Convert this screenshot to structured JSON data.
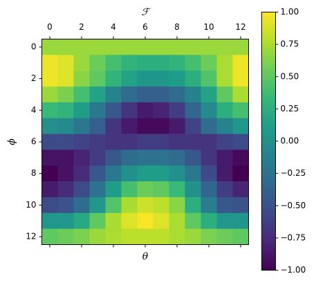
{
  "chart_data": {
    "type": "heatmap",
    "top_xlabel": "ℱ",
    "xlabel": "θ",
    "ylabel": "ϕ",
    "cmap": "viridis",
    "clim": [
      -1,
      1
    ],
    "xlim": [
      -0.5,
      12.5
    ],
    "ylim": [
      12.5,
      -0.5
    ],
    "xticks": [
      0,
      2,
      4,
      6,
      8,
      10,
      12
    ],
    "yticks": [
      0,
      2,
      4,
      6,
      8,
      10,
      12
    ],
    "cticks": [
      {
        "value": -1,
        "label": "−1.00"
      },
      {
        "value": -0.75,
        "label": "−0.75"
      },
      {
        "value": -0.5,
        "label": "−0.50"
      },
      {
        "value": -0.25,
        "label": "−0.25"
      },
      {
        "value": 0,
        "label": "0.00"
      },
      {
        "value": 0.25,
        "label": "0.25"
      },
      {
        "value": 0.5,
        "label": "0.50"
      },
      {
        "value": 0.75,
        "label": "0.75"
      },
      {
        "value": 1,
        "label": "1.00"
      }
    ],
    "values": [
      [
        0.7,
        0.7,
        0.7,
        0.7,
        0.7,
        0.7,
        0.7,
        0.7,
        0.7,
        0.7,
        0.7,
        0.7,
        0.7
      ],
      [
        0.95,
        0.9,
        0.7,
        0.55,
        0.4,
        0.3,
        0.25,
        0.25,
        0.3,
        0.4,
        0.55,
        0.75,
        0.95
      ],
      [
        0.95,
        0.9,
        0.65,
        0.5,
        0.3,
        0.15,
        0.05,
        0.05,
        0.1,
        0.25,
        0.45,
        0.75,
        0.95
      ],
      [
        0.7,
        0.6,
        0.4,
        0.15,
        -0.1,
        -0.3,
        -0.4,
        -0.4,
        -0.3,
        -0.1,
        0.15,
        0.5,
        0.75
      ],
      [
        0.35,
        0.3,
        0.1,
        -0.2,
        -0.45,
        -0.7,
        -0.85,
        -0.8,
        -0.65,
        -0.35,
        -0.05,
        0.25,
        0.4
      ],
      [
        0,
        -0.05,
        -0.2,
        -0.4,
        -0.7,
        -0.85,
        -0.95,
        -0.95,
        -0.85,
        -0.6,
        -0.3,
        -0.1,
        0.05
      ],
      [
        -0.55,
        -0.55,
        -0.6,
        -0.65,
        -0.7,
        -0.7,
        -0.65,
        -0.65,
        -0.7,
        -0.7,
        -0.7,
        -0.6,
        -0.55
      ],
      [
        -0.9,
        -0.9,
        -0.8,
        -0.65,
        -0.45,
        -0.3,
        -0.25,
        -0.25,
        -0.3,
        -0.45,
        -0.7,
        -0.85,
        -0.95
      ],
      [
        -1,
        -0.9,
        -0.75,
        -0.45,
        -0.2,
        0,
        0.1,
        0.1,
        0,
        -0.2,
        -0.55,
        -0.85,
        -1
      ],
      [
        -0.85,
        -0.75,
        -0.55,
        -0.25,
        0.1,
        0.4,
        0.55,
        0.5,
        0.35,
        0,
        -0.35,
        -0.65,
        -0.8
      ],
      [
        -0.55,
        -0.5,
        -0.3,
        0.05,
        0.45,
        0.75,
        0.85,
        0.8,
        0.65,
        0.25,
        -0.15,
        -0.45,
        -0.5
      ],
      [
        0.05,
        0.05,
        0.2,
        0.5,
        0.75,
        0.9,
        0.98,
        0.9,
        0.75,
        0.5,
        0.25,
        0.05,
        0.05
      ],
      [
        0.5,
        0.55,
        0.6,
        0.7,
        0.75,
        0.8,
        0.8,
        0.8,
        0.75,
        0.7,
        0.6,
        0.55,
        0.5
      ]
    ]
  }
}
